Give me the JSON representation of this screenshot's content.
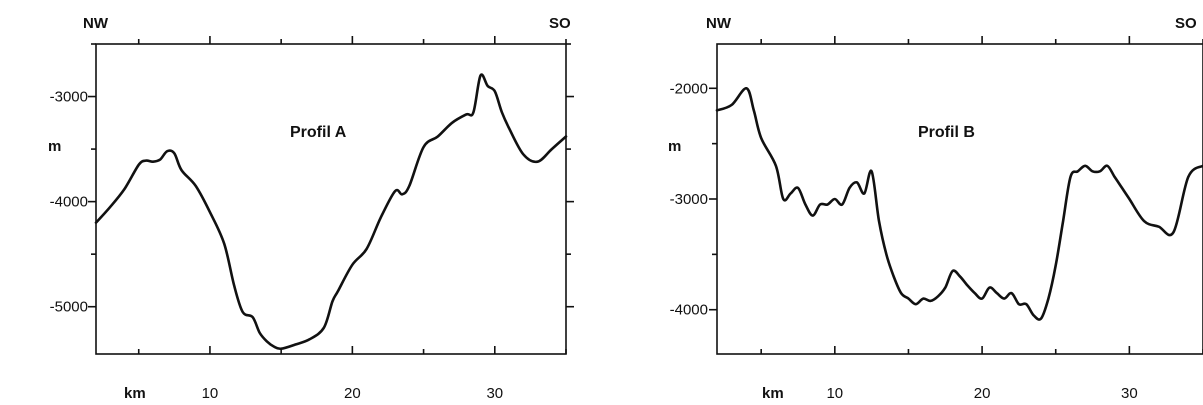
{
  "chart_data": [
    {
      "type": "line",
      "title": "Profil A",
      "xlabel": "km",
      "ylabel": "m",
      "direction_left": "NW",
      "direction_right": "SO",
      "xlim": [
        2,
        35
      ],
      "ylim": [
        -5450,
        -2500
      ],
      "xticks": [
        10,
        20,
        30
      ],
      "yticks": [
        -3000,
        -4000,
        -5000
      ],
      "line_color": "#111111",
      "grid": false,
      "series": [
        {
          "x": [
            2,
            3,
            4,
            5,
            5.5,
            6,
            6.5,
            7,
            7.5,
            8,
            9,
            10,
            11,
            11.7,
            12.3,
            13,
            13.5,
            14,
            14.5,
            15,
            16,
            17,
            18,
            18.6,
            19,
            20,
            21,
            22,
            23,
            23.5,
            24,
            25,
            26,
            27,
            28,
            28.5,
            29,
            29.5,
            30,
            30.5,
            31,
            32,
            33,
            34,
            35
          ],
          "y": [
            -4200,
            -4050,
            -3880,
            -3650,
            -3610,
            -3620,
            -3600,
            -3520,
            -3540,
            -3700,
            -3850,
            -4100,
            -4400,
            -4800,
            -5050,
            -5100,
            -5250,
            -5330,
            -5380,
            -5400,
            -5360,
            -5310,
            -5200,
            -4950,
            -4850,
            -4600,
            -4450,
            -4150,
            -3900,
            -3930,
            -3850,
            -3480,
            -3380,
            -3250,
            -3170,
            -3150,
            -2800,
            -2900,
            -2950,
            -3150,
            -3300,
            -3550,
            -3620,
            -3500,
            -3380
          ]
        }
      ]
    },
    {
      "type": "line",
      "title": "Profil B",
      "xlabel": "km",
      "ylabel": "m",
      "direction_left": "NW",
      "direction_right": "SO",
      "xlim": [
        2,
        35
      ],
      "ylim": [
        -4400,
        -1600
      ],
      "xticks": [
        10,
        20,
        30
      ],
      "yticks": [
        -2000,
        -3000,
        -4000
      ],
      "line_color": "#111111",
      "grid": false,
      "series": [
        {
          "x": [
            2,
            3,
            4,
            4.5,
            5,
            6,
            6.5,
            7,
            7.5,
            8,
            8.5,
            9,
            9.5,
            10,
            10.5,
            11,
            11.5,
            12,
            12.5,
            13,
            13.5,
            14,
            14.5,
            15,
            15.5,
            16,
            16.5,
            17,
            17.5,
            18,
            18.5,
            19,
            19.5,
            20,
            20.5,
            21,
            21.5,
            22,
            22.5,
            23,
            23.5,
            24,
            24.5,
            25,
            25.5,
            26,
            26.5,
            27,
            27.5,
            28,
            28.5,
            29,
            29.5,
            30,
            31,
            32,
            33,
            34,
            35
          ],
          "y": [
            -2200,
            -2150,
            -2000,
            -2200,
            -2450,
            -2700,
            -3000,
            -2950,
            -2900,
            -3050,
            -3150,
            -3050,
            -3050,
            -3000,
            -3050,
            -2900,
            -2850,
            -2950,
            -2750,
            -3200,
            -3500,
            -3700,
            -3850,
            -3900,
            -3950,
            -3900,
            -3920,
            -3880,
            -3800,
            -3650,
            -3700,
            -3780,
            -3850,
            -3900,
            -3800,
            -3850,
            -3900,
            -3850,
            -3950,
            -3950,
            -4050,
            -4080,
            -3900,
            -3600,
            -3200,
            -2800,
            -2750,
            -2700,
            -2750,
            -2750,
            -2700,
            -2800,
            -2900,
            -3000,
            -3200,
            -3250,
            -3300,
            -2800,
            -2700
          ]
        }
      ]
    }
  ]
}
